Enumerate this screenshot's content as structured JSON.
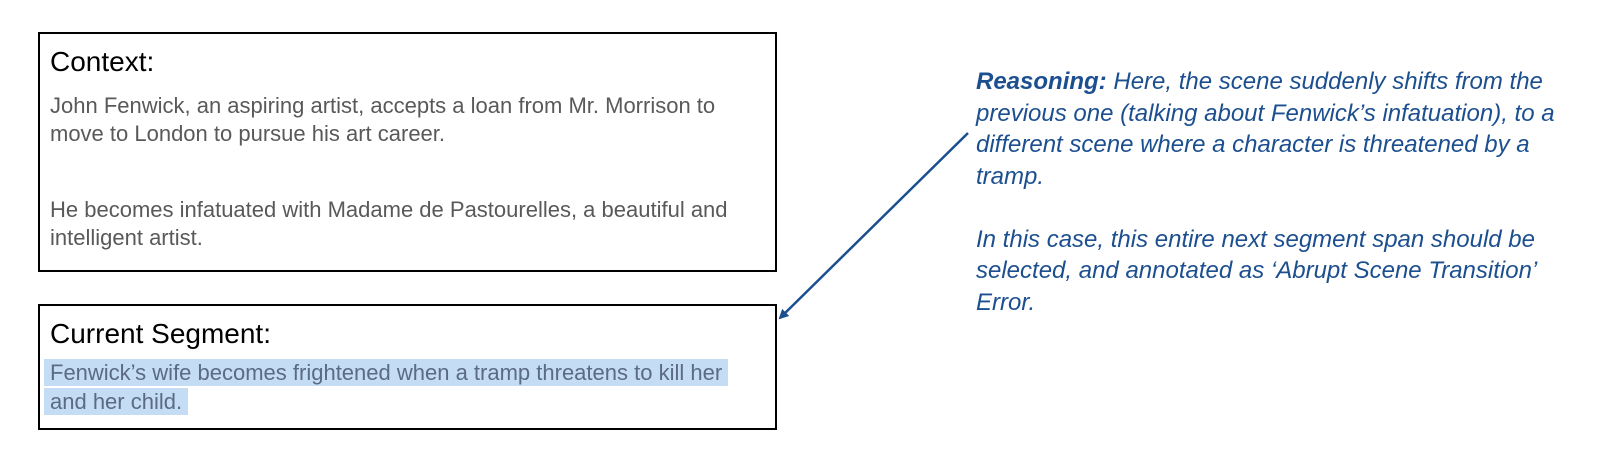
{
  "context": {
    "heading": "Context:",
    "paragraphs": [
      "John Fenwick, an aspiring artist, accepts a loan from Mr. Morrison to move to London to pursue his art career.",
      "He becomes infatuated with Madame de Pastourelles, a beautiful and intelligent artist."
    ]
  },
  "segment": {
    "heading": "Current Segment:",
    "text": "Fenwick’s wife becomes frightened when a tramp threatens to kill her and her child."
  },
  "reasoning": {
    "label": "Reasoning:",
    "text_1": " Here, the scene suddenly shifts from the previous one (talking about Fenwick’s infatuation), to a different scene where a character is threatened by a tramp.",
    "text_2": "In this case, this entire next segment span should be selected, and annotated as ‘Abrupt Scene Transition’ Error."
  },
  "colors": {
    "annotation": "#1c4f8f",
    "highlight": "#c5dcf5",
    "body_text": "#595959",
    "border": "#000000"
  }
}
